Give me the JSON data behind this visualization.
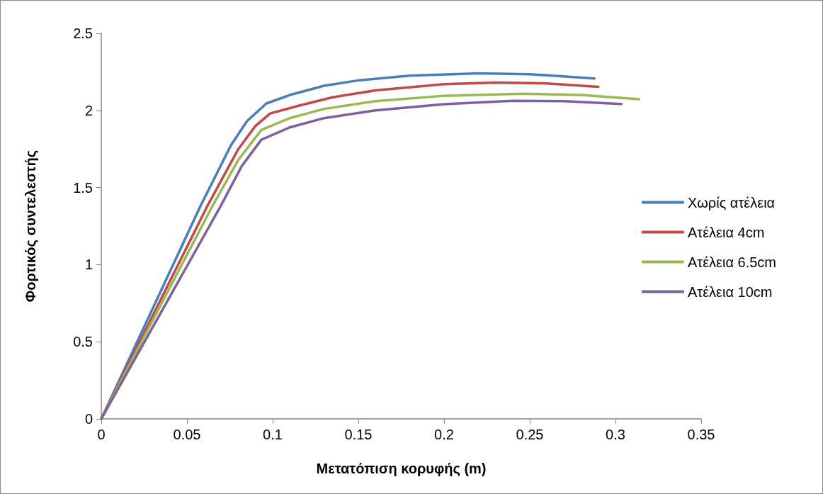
{
  "chart_data": {
    "type": "line",
    "xlabel": "Μετατόπιση κορυφής (m)",
    "ylabel": "Φορτικός συντελεστής",
    "xlim": [
      0,
      0.35
    ],
    "xticks": [
      0,
      0.05,
      0.1,
      0.15,
      0.2,
      0.25,
      0.3,
      0.35
    ],
    "ylim": [
      0,
      2.5
    ],
    "yticks": [
      0,
      0.5,
      1,
      1.5,
      2,
      2.5
    ],
    "grid": false,
    "legend": "right",
    "marker": "none",
    "line_style": "solid",
    "series": [
      {
        "name": "Χωρίς ατέλεια",
        "color": "#4a7ebb",
        "x": [
          0,
          0.058,
          0.0757,
          0.085,
          0.0963,
          0.11,
          0.13,
          0.15,
          0.18,
          0.22,
          0.25,
          0.2877
        ],
        "values": [
          0,
          1.383,
          1.775,
          1.93,
          2.045,
          2.1,
          2.16,
          2.195,
          2.225,
          2.24,
          2.235,
          2.207
        ]
      },
      {
        "name": "Ατέλεια 4cm",
        "color": "#be4b48",
        "x": [
          0,
          0.062,
          0.08,
          0.09,
          0.0985,
          0.115,
          0.135,
          0.16,
          0.2,
          0.23,
          0.26,
          0.29
        ],
        "values": [
          0,
          1.383,
          1.75,
          1.9,
          1.98,
          2.03,
          2.085,
          2.13,
          2.17,
          2.181,
          2.175,
          2.153
        ]
      },
      {
        "name": "Ατέλεια 6.5cm",
        "color": "#98b954",
        "x": [
          0,
          0.065,
          0.08,
          0.0934,
          0.11,
          0.13,
          0.16,
          0.2,
          0.246,
          0.28,
          0.3138
        ],
        "values": [
          0,
          1.383,
          1.68,
          1.873,
          1.95,
          2.01,
          2.06,
          2.095,
          2.108,
          2.1,
          2.073
        ]
      },
      {
        "name": "Ατέλεια 10cm",
        "color": "#7d60a0",
        "x": [
          0,
          0.0698,
          0.082,
          0.0934,
          0.11,
          0.13,
          0.16,
          0.2,
          0.24,
          0.27,
          0.3034
        ],
        "values": [
          0,
          1.383,
          1.64,
          1.81,
          1.89,
          1.95,
          2.0,
          2.04,
          2.062,
          2.06,
          2.042
        ]
      }
    ]
  }
}
